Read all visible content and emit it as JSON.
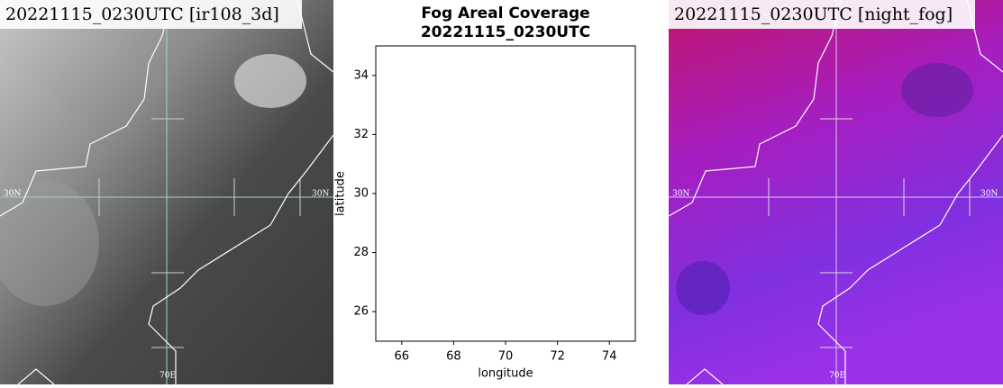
{
  "left_image": {
    "label": "20221115_0230UTC [ir108_3d]",
    "lat_left": "30N",
    "lat_right": "30N",
    "lon_bottom": "70E"
  },
  "right_image": {
    "label": "20221115_0230UTC [night_fog]",
    "lat_left": "30N",
    "lat_right": "30N",
    "lon_bottom": "70E"
  },
  "chart_data": {
    "type": "scatter",
    "title": "Fog Areal Coverage",
    "subtitle": "20221115_0230UTC",
    "x_label": "longitude",
    "y_label": "latitude",
    "xlim": [
      65,
      75
    ],
    "ylim": [
      25,
      35
    ],
    "xticks": [
      66,
      68,
      70,
      72,
      74
    ],
    "yticks": [
      26,
      28,
      30,
      32,
      34
    ]
  }
}
